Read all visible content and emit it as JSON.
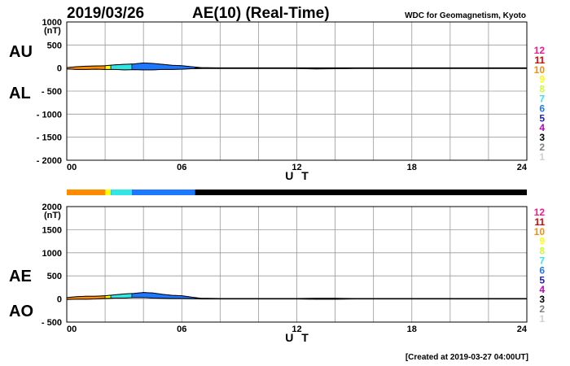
{
  "header": {
    "date": "2019/03/26",
    "title": "AE(10) (Real-Time)",
    "source": "WDC for Geomagnetism, Kyoto"
  },
  "footer": {
    "created": "[Created at 2019-03-27 04:00UT]"
  },
  "level_legend": {
    "labels": [
      "12",
      "11",
      "10",
      "9",
      "8",
      "7",
      "6",
      "5",
      "4",
      "3",
      "2",
      "1"
    ],
    "colors": [
      "#ff1493",
      "#e00000",
      "#ff8c00",
      "#ffff00",
      "#ccff33",
      "#33e6e6",
      "#1e78ff",
      "#2020c0",
      "#c000c0",
      "#000000",
      "#808080",
      "#d0d0d0"
    ]
  },
  "chart_data": [
    {
      "type": "area",
      "name": "AU-AL",
      "ylabel_top": "AU",
      "ylabel_bottom": "AL",
      "unit": "(nT)",
      "xlabel": "U T",
      "xlim": [
        0,
        24
      ],
      "ylim": [
        -2000,
        1000
      ],
      "x_ticks": [
        "00",
        "06",
        "12",
        "18",
        "24"
      ],
      "y_ticks": [
        "1000",
        "500",
        "0",
        "- 500",
        "- 1000",
        "- 1500",
        "- 2000"
      ],
      "grid": true,
      "x_hours": [
        0,
        0.5,
        1,
        1.5,
        2,
        2.5,
        3,
        3.5,
        4,
        4.5,
        5,
        5.5,
        6,
        6.5,
        7,
        8,
        9,
        10,
        11,
        12,
        13,
        14,
        15,
        16,
        17,
        18,
        19,
        20,
        21,
        22,
        23,
        24
      ],
      "upper_nT": [
        10,
        30,
        40,
        45,
        50,
        70,
        80,
        90,
        110,
        100,
        80,
        60,
        50,
        30,
        10,
        5,
        5,
        5,
        5,
        5,
        5,
        5,
        5,
        5,
        5,
        5,
        5,
        5,
        5,
        5,
        5,
        5
      ],
      "lower_nT": [
        -20,
        -30,
        -30,
        -25,
        -30,
        -30,
        -40,
        -35,
        -40,
        -40,
        -30,
        -30,
        -25,
        -15,
        -10,
        -10,
        -10,
        -10,
        -10,
        -10,
        -20,
        -15,
        -10,
        -10,
        -10,
        -10,
        -10,
        -10,
        -10,
        -10,
        -10,
        -10
      ]
    },
    {
      "type": "area",
      "name": "AE-AO",
      "ylabel_top": "AE",
      "ylabel_bottom": "AO",
      "unit": "(nT)",
      "xlabel": "U T",
      "xlim": [
        0,
        24
      ],
      "ylim": [
        -500,
        2000
      ],
      "x_ticks": [
        "00",
        "06",
        "12",
        "18",
        "24"
      ],
      "y_ticks": [
        "2000",
        "1500",
        "1000",
        "500",
        "0",
        "- 500"
      ],
      "grid": true,
      "x_hours": [
        0,
        0.5,
        1,
        1.5,
        2,
        2.5,
        3,
        3.5,
        4,
        4.5,
        5,
        5.5,
        6,
        6.5,
        7,
        8,
        9,
        10,
        11,
        12,
        13,
        14,
        15,
        16,
        17,
        18,
        19,
        20,
        21,
        22,
        23,
        24
      ],
      "upper_nT": [
        30,
        50,
        60,
        60,
        70,
        90,
        110,
        120,
        140,
        130,
        100,
        80,
        70,
        40,
        15,
        10,
        10,
        10,
        10,
        10,
        15,
        15,
        10,
        10,
        10,
        10,
        10,
        10,
        10,
        10,
        10,
        10
      ],
      "lower_nT": [
        -10,
        -5,
        -5,
        0,
        10,
        20,
        20,
        30,
        30,
        20,
        15,
        10,
        10,
        5,
        0,
        0,
        0,
        0,
        0,
        0,
        -5,
        -5,
        0,
        0,
        0,
        0,
        0,
        0,
        0,
        0,
        0,
        0
      ]
    }
  ],
  "activity_bar": {
    "segments": [
      {
        "from": 0,
        "to": 2.0,
        "level": 10
      },
      {
        "from": 2.0,
        "to": 2.3,
        "level": 9
      },
      {
        "from": 2.3,
        "to": 3.4,
        "level": 7
      },
      {
        "from": 3.4,
        "to": 6.7,
        "level": 6
      },
      {
        "from": 6.7,
        "to": 24,
        "level": 3
      }
    ]
  }
}
